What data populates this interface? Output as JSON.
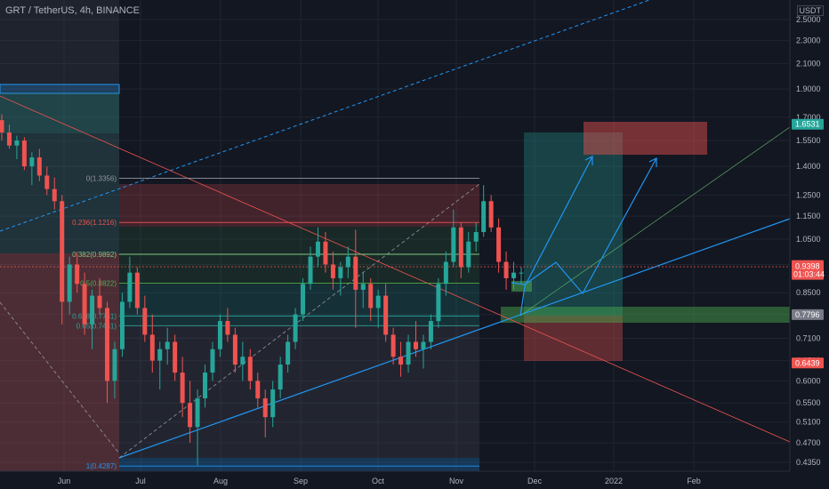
{
  "header": {
    "title": "GRT / TetherUS, 4h, BINANCE",
    "currency": "USDT"
  },
  "colors": {
    "bg": "#131722",
    "candle_up": "#26a69a",
    "candle_down": "#ef5350",
    "grid": "#1f2430",
    "trend": "#2196f3",
    "badge_green": "#26a69a",
    "badge_red": "#ef5350",
    "badge_gray": "#787b86"
  },
  "chart_data": {
    "type": "candlestick",
    "y_scale": "log",
    "ylim": [
      0.42,
      2.7
    ],
    "y_ticks": [
      "2.5000",
      "2.3000",
      "2.1000",
      "1.9000",
      "1.7000",
      "1.5500",
      "1.4000",
      "1.2500",
      "1.1500",
      "1.0500",
      "0.9500",
      "0.8500",
      "0.7800",
      "0.7100",
      "0.6500",
      "0.6000",
      "0.5500",
      "0.5100",
      "0.4700",
      "0.4350"
    ],
    "x_labels": [
      "Jun",
      "Jul",
      "Aug",
      "Sep",
      "Oct",
      "Nov",
      "Dec",
      "2022",
      "Feb"
    ],
    "last_price": "0.9398",
    "countdown": "01:03:44",
    "price_badges": [
      {
        "text": "1.6531",
        "value": 1.6531,
        "color": "green"
      },
      {
        "text": "0.7796",
        "value": 0.7796,
        "color": "gray"
      },
      {
        "text": "0.6439",
        "value": 0.6439,
        "color": "red"
      }
    ],
    "fib_levels": [
      {
        "label": "0(1.3356)",
        "value": 1.3356
      },
      {
        "label": "0.236(1.1216)",
        "value": 1.1216
      },
      {
        "label": "0.382(0.9892)",
        "value": 0.9892
      },
      {
        "label": "0.5(0.8822)",
        "value": 0.8822
      },
      {
        "label": "0.618(0.7751)",
        "value": 0.7751
      },
      {
        "label": "0.65(0.7461)",
        "value": 0.7461
      },
      {
        "label": "1(0.4287)",
        "value": 0.4287
      }
    ],
    "candles": [
      [
        1.68,
        1.72,
        1.55,
        1.6
      ],
      [
        1.6,
        1.65,
        1.5,
        1.52
      ],
      [
        1.52,
        1.58,
        1.44,
        1.55
      ],
      [
        1.55,
        1.57,
        1.38,
        1.4
      ],
      [
        1.4,
        1.48,
        1.3,
        1.45
      ],
      [
        1.45,
        1.5,
        1.32,
        1.35
      ],
      [
        1.35,
        1.4,
        1.25,
        1.28
      ],
      [
        1.28,
        1.34,
        1.18,
        1.22
      ],
      [
        1.22,
        1.25,
        0.75,
        0.82
      ],
      [
        0.82,
        0.98,
        0.78,
        0.95
      ],
      [
        0.95,
        1.0,
        0.85,
        0.88
      ],
      [
        0.88,
        0.92,
        0.72,
        0.75
      ],
      [
        0.75,
        0.86,
        0.68,
        0.84
      ],
      [
        0.84,
        0.9,
        0.78,
        0.8
      ],
      [
        0.8,
        0.82,
        0.55,
        0.6
      ],
      [
        0.6,
        0.7,
        0.56,
        0.68
      ],
      [
        0.68,
        0.85,
        0.66,
        0.82
      ],
      [
        0.82,
        0.98,
        0.8,
        0.92
      ],
      [
        0.92,
        0.94,
        0.78,
        0.8
      ],
      [
        0.8,
        0.84,
        0.7,
        0.72
      ],
      [
        0.72,
        0.78,
        0.62,
        0.65
      ],
      [
        0.65,
        0.7,
        0.58,
        0.68
      ],
      [
        0.68,
        0.74,
        0.64,
        0.7
      ],
      [
        0.7,
        0.72,
        0.6,
        0.62
      ],
      [
        0.62,
        0.66,
        0.52,
        0.55
      ],
      [
        0.55,
        0.6,
        0.47,
        0.5
      ],
      [
        0.5,
        0.58,
        0.43,
        0.56
      ],
      [
        0.56,
        0.64,
        0.54,
        0.62
      ],
      [
        0.62,
        0.7,
        0.6,
        0.68
      ],
      [
        0.68,
        0.78,
        0.66,
        0.76
      ],
      [
        0.76,
        0.8,
        0.7,
        0.72
      ],
      [
        0.72,
        0.74,
        0.62,
        0.64
      ],
      [
        0.64,
        0.7,
        0.6,
        0.66
      ],
      [
        0.66,
        0.68,
        0.58,
        0.6
      ],
      [
        0.6,
        0.62,
        0.54,
        0.56
      ],
      [
        0.56,
        0.58,
        0.48,
        0.52
      ],
      [
        0.52,
        0.6,
        0.5,
        0.58
      ],
      [
        0.58,
        0.66,
        0.56,
        0.64
      ],
      [
        0.64,
        0.72,
        0.62,
        0.7
      ],
      [
        0.7,
        0.8,
        0.68,
        0.78
      ],
      [
        0.78,
        0.9,
        0.76,
        0.88
      ],
      [
        0.88,
        1.02,
        0.86,
        0.98
      ],
      [
        0.98,
        1.1,
        0.94,
        1.04
      ],
      [
        1.04,
        1.08,
        0.92,
        0.95
      ],
      [
        0.95,
        1.0,
        0.86,
        0.9
      ],
      [
        0.9,
        0.96,
        0.84,
        0.94
      ],
      [
        0.94,
        1.02,
        0.9,
        0.98
      ],
      [
        0.98,
        1.09,
        0.74,
        0.86
      ],
      [
        0.86,
        0.92,
        0.8,
        0.88
      ],
      [
        0.88,
        0.9,
        0.76,
        0.8
      ],
      [
        0.8,
        0.86,
        0.74,
        0.84
      ],
      [
        0.84,
        0.88,
        0.7,
        0.72
      ],
      [
        0.72,
        0.74,
        0.64,
        0.66
      ],
      [
        0.66,
        0.7,
        0.61,
        0.64
      ],
      [
        0.64,
        0.72,
        0.62,
        0.7
      ],
      [
        0.7,
        0.76,
        0.66,
        0.68
      ],
      [
        0.68,
        0.72,
        0.63,
        0.7
      ],
      [
        0.7,
        0.78,
        0.68,
        0.76
      ],
      [
        0.76,
        0.9,
        0.74,
        0.88
      ],
      [
        0.88,
        1.0,
        0.84,
        0.96
      ],
      [
        0.96,
        1.18,
        0.94,
        1.1
      ],
      [
        1.1,
        1.12,
        0.9,
        0.94
      ],
      [
        0.94,
        1.08,
        0.92,
        1.04
      ],
      [
        1.04,
        1.12,
        1.0,
        1.08
      ],
      [
        1.08,
        1.3,
        1.06,
        1.22
      ],
      [
        1.22,
        1.25,
        1.08,
        1.1
      ],
      [
        1.1,
        1.14,
        0.92,
        0.96
      ],
      [
        0.96,
        1.0,
        0.86,
        0.9
      ],
      [
        0.9,
        0.96,
        0.86,
        0.92
      ],
      [
        0.92,
        0.94,
        0.88,
        0.92
      ]
    ]
  }
}
